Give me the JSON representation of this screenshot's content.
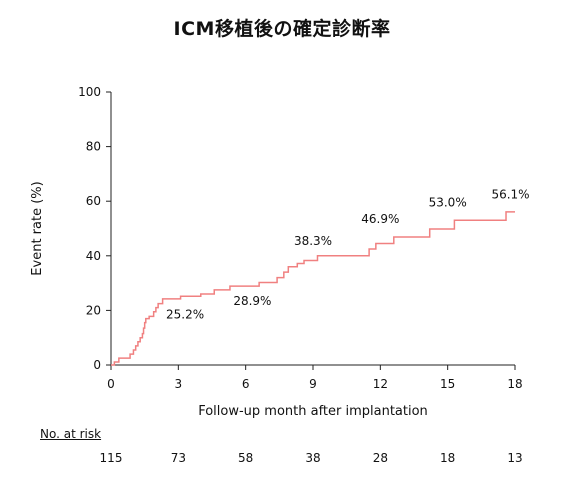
{
  "title": "ICM移植後の確定診断率",
  "chart_data": {
    "type": "line",
    "xlabel": "Follow-up month after implantation",
    "ylabel": "Event rate (%)",
    "xlim": [
      0,
      18
    ],
    "ylim": [
      0,
      100
    ],
    "x_ticks": [
      0,
      3,
      6,
      9,
      12,
      15,
      18
    ],
    "y_ticks": [
      0,
      20,
      40,
      60,
      80,
      100
    ],
    "grid": false,
    "line_color": "#f08080",
    "series": [
      {
        "step": true,
        "points": [
          [
            0,
            0
          ],
          [
            0.15,
            1.1
          ],
          [
            0.35,
            2.5
          ],
          [
            0.85,
            4.0
          ],
          [
            1.0,
            5.5
          ],
          [
            1.1,
            7.0
          ],
          [
            1.2,
            8.5
          ],
          [
            1.3,
            10.0
          ],
          [
            1.4,
            11.5
          ],
          [
            1.45,
            13.5
          ],
          [
            1.5,
            15.5
          ],
          [
            1.55,
            17.0
          ],
          [
            1.7,
            17.8
          ],
          [
            1.9,
            19.5
          ],
          [
            2.0,
            21.0
          ],
          [
            2.1,
            22.5
          ],
          [
            2.3,
            24.2
          ],
          [
            3.1,
            25.2
          ],
          [
            4.0,
            26.0
          ],
          [
            4.6,
            27.5
          ],
          [
            5.3,
            28.9
          ],
          [
            6.6,
            30.2
          ],
          [
            7.4,
            32.0
          ],
          [
            7.7,
            34.0
          ],
          [
            7.9,
            36.0
          ],
          [
            8.3,
            37.2
          ],
          [
            8.6,
            38.3
          ],
          [
            9.2,
            40.0
          ],
          [
            11.5,
            42.5
          ],
          [
            11.8,
            44.5
          ],
          [
            12.6,
            46.9
          ],
          [
            14.2,
            49.8
          ],
          [
            15.3,
            53.0
          ],
          [
            17.6,
            56.1
          ],
          [
            18.0,
            56.1
          ]
        ]
      }
    ],
    "annotations": [
      {
        "text": "25.2%",
        "x": 3.3,
        "y": 17
      },
      {
        "text": "28.9%",
        "x": 6.3,
        "y": 22
      },
      {
        "text": "38.3%",
        "x": 9.0,
        "y": 44
      },
      {
        "text": "46.9%",
        "x": 12.0,
        "y": 52
      },
      {
        "text": "53.0%",
        "x": 15.0,
        "y": 58
      },
      {
        "text": "56.1%",
        "x": 17.8,
        "y": 61
      }
    ]
  },
  "risk_table": {
    "heading": "No. at risk",
    "months": [
      0,
      3,
      6,
      9,
      12,
      15,
      18
    ],
    "values": [
      "115",
      "73",
      "58",
      "38",
      "28",
      "18",
      "13"
    ]
  }
}
